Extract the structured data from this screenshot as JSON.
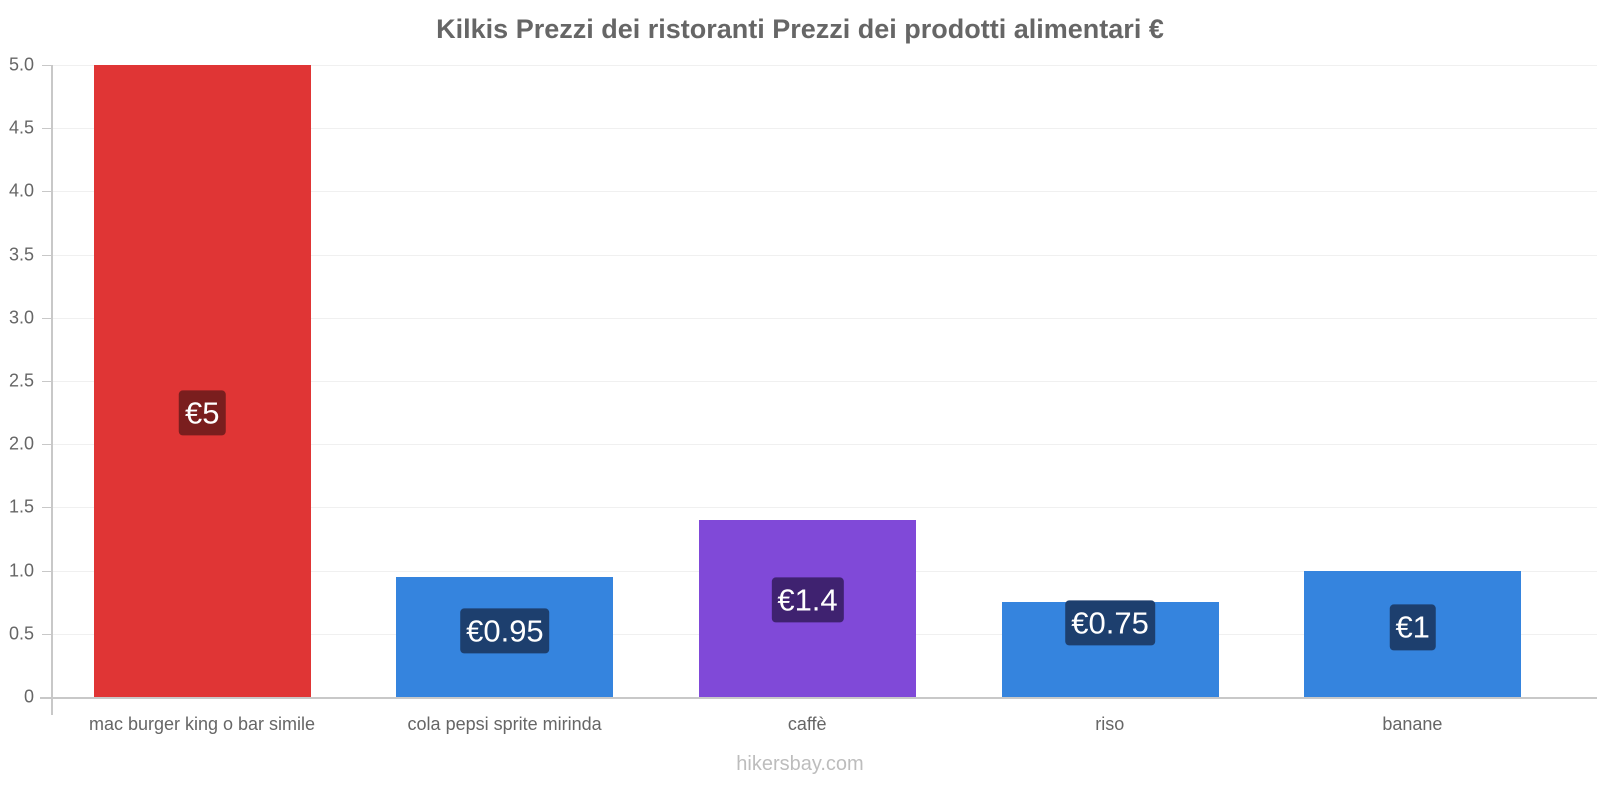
{
  "chart_data": {
    "type": "bar",
    "title": "Kilkis Prezzi dei ristoranti Prezzi dei prodotti alimentari €",
    "xlabel": "",
    "ylabel": "",
    "ylim": [
      0,
      5.0
    ],
    "grid": true,
    "legend": null,
    "yticks": [
      "0",
      "0.5",
      "1.0",
      "1.5",
      "2.0",
      "2.5",
      "3.0",
      "3.5",
      "4.0",
      "4.5",
      "5.0"
    ],
    "categories": [
      "mac burger king o bar simile",
      "cola pepsi sprite mirinda",
      "caffè",
      "riso",
      "banane"
    ],
    "values": [
      5,
      0.95,
      1.4,
      0.75,
      1
    ],
    "data_labels": [
      "€5",
      "€0.95",
      "€1.4",
      "€0.75",
      "€1"
    ],
    "bar_colors": [
      "#e03535",
      "#3584de",
      "#8049d8",
      "#3584de",
      "#3584de"
    ],
    "label_bg_colors": [
      "#7a1e1e",
      "#1d3f6e",
      "#3f2270",
      "#1d3f6e",
      "#1d3f6e"
    ]
  },
  "watermark": "hikersbay.com"
}
